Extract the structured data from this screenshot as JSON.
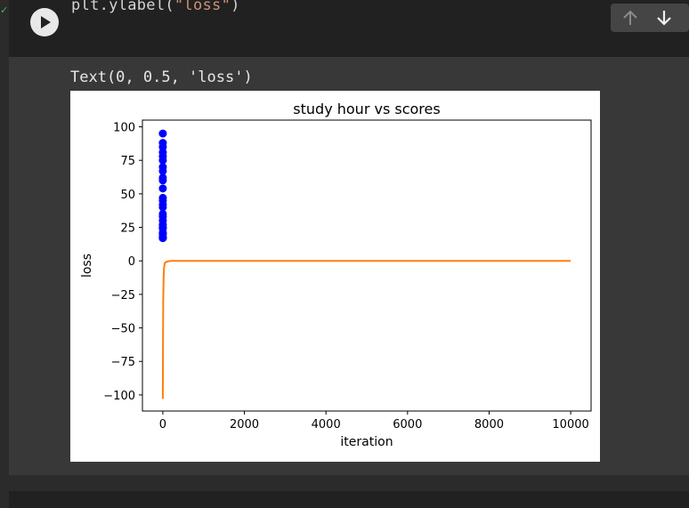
{
  "cell": {
    "code_prefix": "plt.ylabel(",
    "code_string": "\"loss\"",
    "code_suffix": ")",
    "output_text": "Text(0, 0.5, 'loss')"
  },
  "toolbar": {
    "up_icon": "arrow-up-icon",
    "down_icon": "arrow-down-icon"
  },
  "colors": {
    "scatter": "#0000ff",
    "line": "#ff7f0e"
  },
  "chart_data": {
    "type": "line",
    "title": "study hour vs scores",
    "xlabel": "iteration",
    "ylabel": "loss",
    "xlim": [
      -500,
      10500
    ],
    "ylim": [
      -112,
      105
    ],
    "xticks": [
      0,
      2000,
      4000,
      6000,
      8000,
      10000
    ],
    "yticks": [
      -100,
      -75,
      -50,
      -25,
      0,
      25,
      50,
      75,
      100
    ],
    "grid": false,
    "series": [
      {
        "kind": "scatter",
        "color": "#0000ff",
        "x": [
          0,
          0,
          0,
          0,
          0,
          0,
          0,
          0,
          0,
          0,
          0,
          0,
          0,
          0,
          0,
          0,
          0,
          0,
          0,
          0,
          0,
          0,
          0,
          0,
          0,
          0
        ],
        "y": [
          95,
          88,
          85,
          81,
          78,
          75,
          70,
          67,
          62,
          60,
          54,
          47,
          45,
          42,
          40,
          35,
          33,
          30,
          27,
          25,
          24,
          21,
          20,
          18,
          17,
          17
        ]
      },
      {
        "kind": "line",
        "color": "#ff7f0e",
        "x": [
          0,
          5,
          10,
          20,
          30,
          50,
          100,
          200,
          500,
          1000,
          10000
        ],
        "y": [
          -103,
          -60,
          -30,
          -12,
          -5,
          -1.5,
          -0.5,
          0,
          0,
          0,
          0
        ]
      }
    ]
  }
}
